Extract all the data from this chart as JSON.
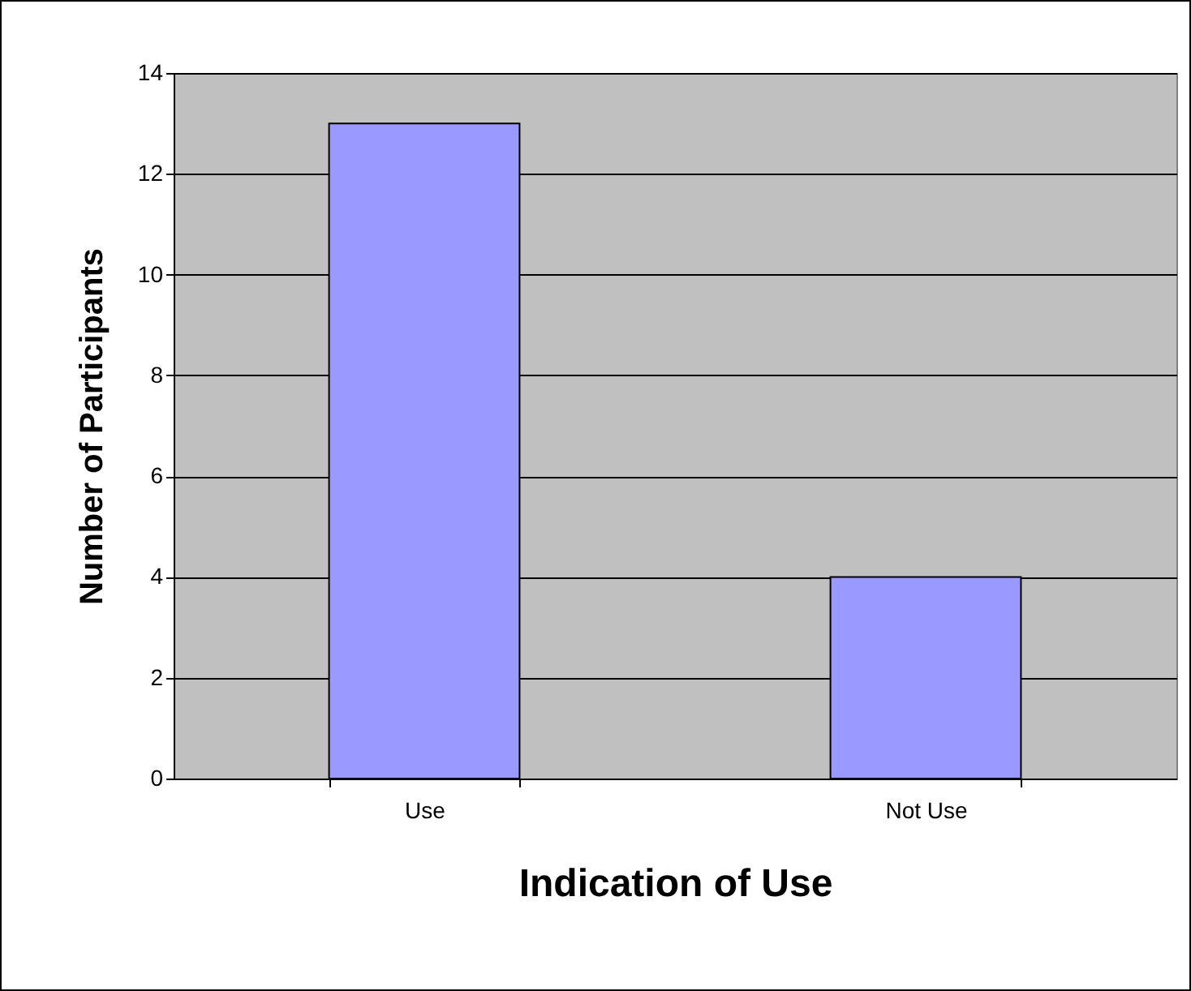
{
  "chart_data": {
    "type": "bar",
    "xlabel": "Indication of Use",
    "ylabel": "Number of Participants",
    "categories": [
      "Use",
      "Not Use"
    ],
    "values": [
      13,
      4
    ],
    "color": "#9999ff",
    "ylim": [
      0,
      14
    ],
    "yticks": [
      0,
      2,
      4,
      6,
      8,
      10,
      12,
      14
    ],
    "grid": "y"
  }
}
